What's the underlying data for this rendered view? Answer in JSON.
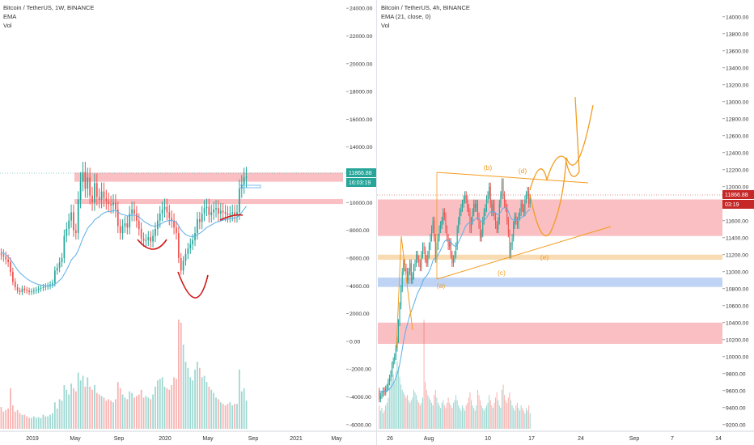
{
  "colors": {
    "up": "#26a69a",
    "down": "#ef5350",
    "ema": "#5aaee8",
    "zone_red": "#f7a9ad",
    "zone_blue": "#a9c6f1",
    "zone_orange": "#f7cf9a",
    "orange": "#f39c1f",
    "price_tag_green": "#26a69a",
    "price_tag_red": "#c62828"
  },
  "chart_data": [
    {
      "type": "candlestick",
      "legend": [
        "Bitcoin / TetherUS, 1W, BINANCE",
        "EMA",
        "Vol"
      ],
      "price_axis": {
        "ticks": [
          "-6000.00",
          "-4000.00",
          "-2000.00",
          "0.00",
          "2000.00",
          "4000.00",
          "6000.00",
          "8000.00",
          "10000.00",
          "12000.00",
          "14000.00",
          "16000.00",
          "18000.00",
          "20000.00",
          "22000.00",
          "24000.00"
        ],
        "range": [
          -6300,
          24300
        ]
      },
      "time_axis": {
        "labels": [
          "2019",
          "May",
          "Sep",
          "2020",
          "May",
          "Sep",
          "2021",
          "May"
        ]
      },
      "last_price": {
        "label": "11866.88",
        "countdown": "16:03:19"
      },
      "closes": [
        6250,
        6100,
        5900,
        5700,
        5000,
        4300,
        3900,
        3650,
        3550,
        3800,
        3700,
        3650,
        3550,
        3600,
        3650,
        3700,
        3800,
        3850,
        3900,
        3950,
        4000,
        4100,
        4200,
        5100,
        5300,
        5700,
        6000,
        7600,
        8100,
        8700,
        9300,
        8000,
        7800,
        10200,
        11500,
        12200,
        11000,
        11800,
        10500,
        10000,
        11400,
        10400,
        10200,
        10800,
        10300,
        10100,
        9900,
        9800,
        10000,
        9500,
        8300,
        7800,
        8300,
        8500,
        8200,
        9200,
        9500,
        9200,
        8700,
        8100,
        7400,
        7250,
        7300,
        7500,
        7200,
        7600,
        8100,
        8700,
        9200,
        9500,
        9700,
        9300,
        8900,
        8700,
        8200,
        7800,
        6000,
        5100,
        5800,
        6300,
        6700,
        7000,
        7300,
        7800,
        8800,
        8600,
        9200,
        9600,
        9700,
        9100,
        9300,
        9500,
        9600,
        9200,
        9400,
        9300,
        9200,
        9100,
        9200,
        9300,
        9100,
        9300,
        11000,
        11300,
        11800,
        11866
      ],
      "ema_values": [
        6400,
        6350,
        6250,
        6100,
        5900,
        5650,
        5400,
        5150,
        4950,
        4800,
        4650,
        4520,
        4400,
        4300,
        4220,
        4150,
        4100,
        4060,
        4030,
        4010,
        4000,
        4010,
        4030,
        4120,
        4230,
        4400,
        4560,
        4850,
        5150,
        5480,
        5850,
        6050,
        6220,
        6560,
        6990,
        7450,
        7780,
        8140,
        8350,
        8500,
        8760,
        8880,
        8980,
        9150,
        9250,
        9320,
        9350,
        9370,
        9420,
        9420,
        9330,
        9200,
        9140,
        9100,
        9030,
        9050,
        9090,
        9100,
        9060,
        8970,
        8810,
        8670,
        8550,
        8460,
        8350,
        8310,
        8300,
        8340,
        8420,
        8520,
        8620,
        8680,
        8700,
        8700,
        8660,
        8580,
        8340,
        8050,
        7850,
        7700,
        7610,
        7560,
        7540,
        7580,
        7700,
        7780,
        7900,
        8050,
        8200,
        8290,
        8380,
        8480,
        8580,
        8620,
        8680,
        8730,
        8770,
        8800,
        8830,
        8870,
        8890,
        8930,
        9110,
        9300,
        9530,
        9740
      ],
      "volumes": [
        1400,
        1100,
        1200,
        1300,
        2600,
        1500,
        1100,
        1200,
        1000,
        900,
        900,
        800,
        700,
        700,
        800,
        700,
        750,
        700,
        900,
        800,
        800,
        900,
        1000,
        1700,
        1300,
        1900,
        1800,
        2800,
        2500,
        2200,
        2900,
        2600,
        2400,
        3600,
        3100,
        3400,
        2700,
        3300,
        2700,
        2500,
        2800,
        2300,
        2200,
        2100,
        2000,
        1800,
        1900,
        1800,
        1700,
        1900,
        3000,
        2600,
        2200,
        2000,
        1900,
        2400,
        2300,
        2000,
        2100,
        2200,
        2500,
        2000,
        2100,
        2000,
        1900,
        2200,
        2700,
        3100,
        3200,
        3300,
        2700,
        2600,
        2500,
        2800,
        3300,
        3200,
        7000,
        6800,
        5400,
        4300,
        3900,
        3300,
        3100,
        3800,
        4300,
        3900,
        3300,
        3400,
        3000,
        2700,
        2500,
        2300,
        2000,
        1900,
        1700,
        1600,
        1500,
        1600,
        1700,
        1500,
        1600,
        1600,
        3800,
        2400,
        2600,
        1800
      ],
      "zones": [
        {
          "from": 11500,
          "to": 12150,
          "color": "red"
        },
        {
          "from": 9900,
          "to": 10250,
          "color": "red"
        }
      ]
    },
    {
      "type": "candlestick",
      "legend": [
        "Bitcoin / TetherUS, 4h, BINANCE",
        "EMA (21, close, 0)",
        "Vol"
      ],
      "price_axis": {
        "ticks": [
          "9200.00",
          "9400.00",
          "9600.00",
          "9800.00",
          "10000.00",
          "10200.00",
          "10400.00",
          "10600.00",
          "10800.00",
          "11000.00",
          "11200.00",
          "11400.00",
          "11600.00",
          "11800.00",
          "12000.00",
          "12200.00",
          "12400.00",
          "12600.00",
          "12800.00",
          "13000.00",
          "13200.00",
          "13400.00",
          "13600.00",
          "13800.00",
          "14000.00"
        ],
        "range": [
          9150,
          14150
        ]
      },
      "time_axis": {
        "labels": [
          "26",
          "Aug",
          "10",
          "17",
          "24",
          "Sep",
          "7",
          "14"
        ]
      },
      "last_price": {
        "label": "11866.88",
        "countdown": "03:19"
      },
      "wave_labels": [
        "(a)",
        "(b)",
        "(c)",
        "(d)",
        "(e)"
      ],
      "closes": [
        9500,
        9540,
        9560,
        9600,
        9580,
        9620,
        9640,
        9700,
        9750,
        9800,
        9900,
        9950,
        10000,
        10100,
        10200,
        10400,
        10600,
        10800,
        11000,
        11100,
        11050,
        11000,
        10900,
        11000,
        11100,
        10900,
        10950,
        11050,
        11100,
        11200,
        11150,
        11100,
        11050,
        11200,
        11300,
        11250,
        11150,
        11100,
        11200,
        11300,
        11400,
        11500,
        11600,
        11400,
        11150,
        11300,
        11400,
        11500,
        11550,
        11600,
        11700,
        11650,
        11500,
        11400,
        11300,
        11350,
        11200,
        11100,
        11150,
        11200,
        11300,
        11500,
        11600,
        11700,
        11750,
        11800,
        11850,
        11900,
        11850,
        11750,
        11700,
        11500,
        11600,
        11700,
        11800,
        11750,
        11800,
        11650,
        11550,
        11400,
        11450,
        11600,
        11700,
        11750,
        11850,
        11900,
        12000,
        11800,
        11700,
        11800,
        11650,
        11550,
        11500,
        11600,
        11800,
        11900,
        12050,
        11900,
        11800,
        11750,
        11600,
        11450,
        11200,
        11300,
        11400,
        11550,
        11650,
        11600,
        11550,
        11650,
        11700,
        11800,
        11750,
        11700,
        11850,
        11900,
        11950,
        11800,
        11866
      ],
      "ema_values": [
        9600,
        9591,
        9588,
        9589,
        9588,
        9591,
        9596,
        9605,
        9618,
        9635,
        9659,
        9686,
        9714,
        9749,
        9789,
        9844,
        9913,
        9994,
        10085,
        10178,
        10257,
        10325,
        10378,
        10435,
        10496,
        10532,
        10570,
        10614,
        10658,
        10707,
        10747,
        10779,
        10804,
        10840,
        10882,
        10915,
        10935,
        10950,
        10972,
        11004,
        11039,
        11081,
        11128,
        11153,
        11153,
        11167,
        11197,
        11225,
        11255,
        11287,
        11324,
        11355,
        11369,
        11371,
        11366,
        11365,
        11350,
        11327,
        11311,
        11301,
        11301,
        11319,
        11345,
        11378,
        11412,
        11447,
        11479,
        11518,
        11543,
        11561,
        11575,
        11569,
        11572,
        11584,
        11604,
        11617,
        11634,
        11633,
        11625,
        11605,
        11591,
        11592,
        11604,
        11617,
        11638,
        11661,
        11691,
        11702,
        11702,
        11711,
        11707,
        11693,
        11676,
        11668,
        11680,
        11700,
        11733,
        11748,
        11752,
        11752,
        11738,
        11712,
        11666,
        11633,
        11615,
        11608,
        11612,
        11611,
        11605,
        11613,
        11621,
        11636,
        11645,
        11650,
        11668,
        11688,
        11712,
        11720,
        11734
      ],
      "volumes": [
        900,
        700,
        800,
        600,
        700,
        900,
        1000,
        1200,
        1600,
        1900,
        2300,
        2100,
        1800,
        2200,
        2600,
        2400,
        2000,
        1700,
        1500,
        1400,
        1300,
        1200,
        1300,
        1100,
        1000,
        1100,
        1200,
        1500,
        1400,
        1300,
        1100,
        1000,
        900,
        1000,
        1200,
        4200,
        1800,
        1500,
        1300,
        1200,
        1100,
        1000,
        900,
        1300,
        1500,
        1200,
        1000,
        900,
        800,
        1000,
        1100,
        900,
        800,
        1000,
        1200,
        1000,
        900,
        800,
        1000,
        1100,
        1300,
        1100,
        900,
        800,
        700,
        900,
        800,
        700,
        900,
        1000,
        1200,
        1400,
        1100,
        900,
        800,
        700,
        900,
        1500,
        1300,
        1100,
        900,
        800,
        700,
        800,
        900,
        1000,
        1300,
        1100,
        900,
        800,
        1000,
        1200,
        1400,
        1100,
        900,
        800,
        1500,
        1700,
        1300,
        1100,
        1000,
        1200,
        1400,
        1100,
        900,
        800,
        700,
        900,
        1000,
        800,
        700,
        900,
        800,
        700,
        600,
        800,
        700,
        900,
        600
      ],
      "zones": [
        {
          "from": 11420,
          "to": 11850,
          "color": "red"
        },
        {
          "from": 10150,
          "to": 10400,
          "color": "red"
        },
        {
          "from": 10820,
          "to": 10930,
          "color": "blue"
        },
        {
          "from": 11140,
          "to": 11200,
          "color": "orange"
        }
      ]
    }
  ]
}
